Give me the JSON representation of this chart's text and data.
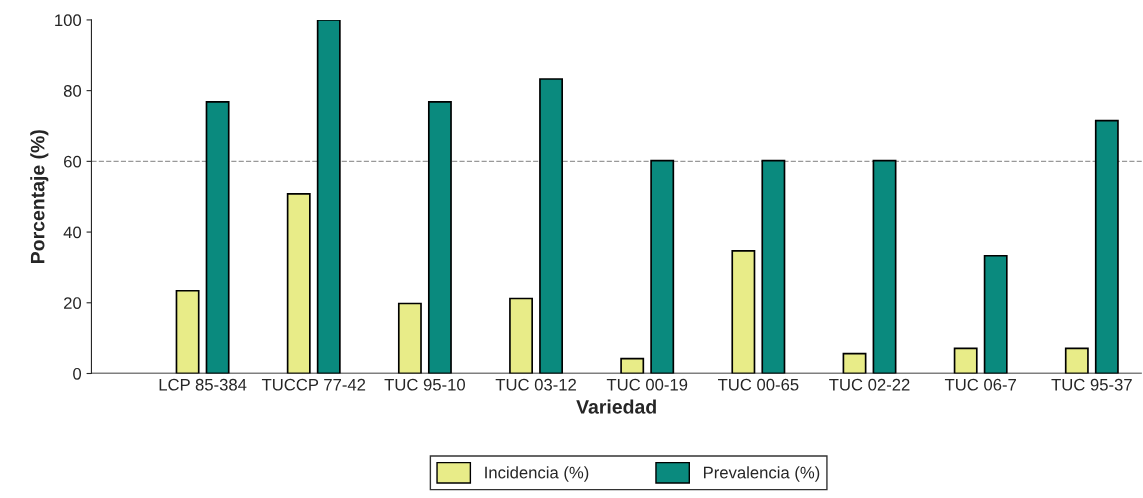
{
  "chart_data": {
    "type": "bar",
    "xlabel": "Variedad",
    "ylabel": "Porcentaje (%)",
    "categories": [
      "LCP 85-384",
      "TUCCP 77-42",
      "TUC 95-10",
      "TUC 03-12",
      "TUC 00-19",
      "TUC 00-65",
      "TUC 02-22",
      "TUC 06-7",
      "TUC 95-37"
    ],
    "series": [
      {
        "name": "Incidencia (%)",
        "color": "#e8ec88",
        "values": [
          23.4,
          50.8,
          19.8,
          21.2,
          4.2,
          34.7,
          5.6,
          7.1,
          7.1
        ]
      },
      {
        "name": "Prevalencia (%)",
        "color": "#0a8a7e",
        "values": [
          76.8,
          100,
          76.8,
          83.3,
          60.2,
          60.2,
          60.2,
          33.3,
          71.5
        ]
      }
    ],
    "ylim": [
      0,
      100
    ],
    "yticks": [
      0,
      20,
      40,
      60,
      80,
      100
    ],
    "ref_lines": [
      {
        "axis": "y",
        "value": 60,
        "color": "#999999",
        "line_style": "dashed"
      }
    ],
    "grid": false,
    "legend": "bottom"
  }
}
